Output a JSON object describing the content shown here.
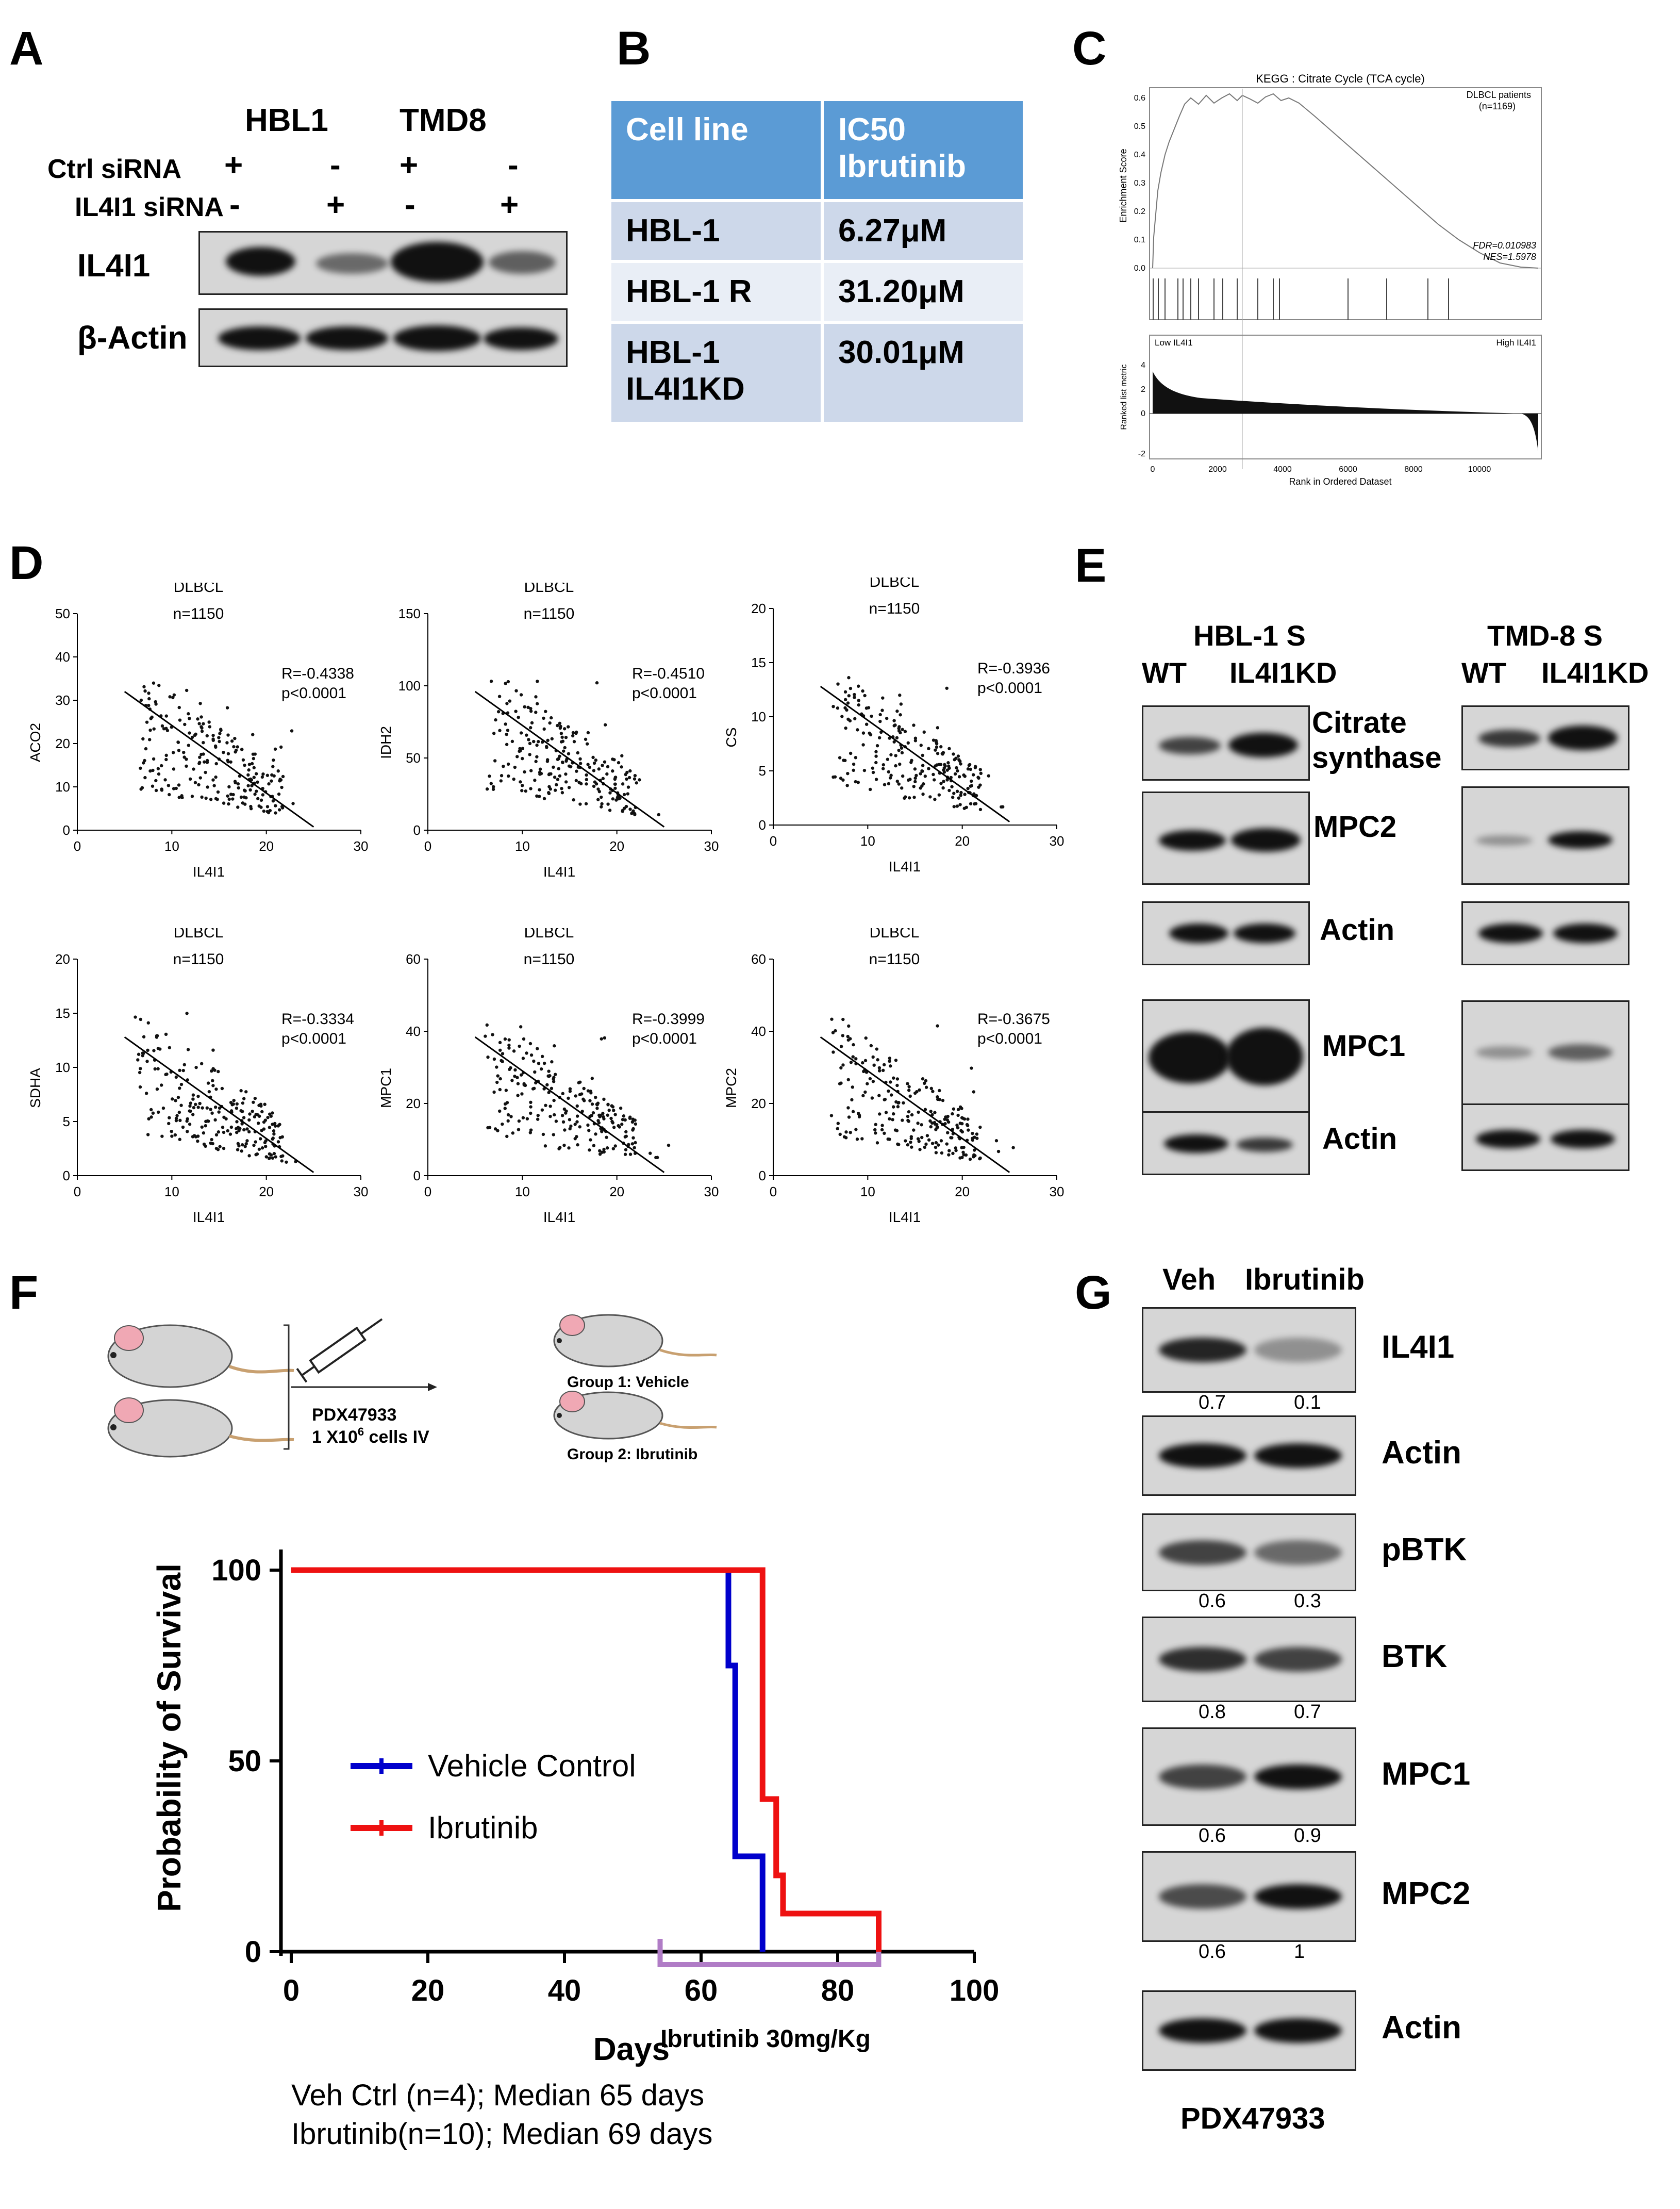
{
  "panels": {
    "A": "A",
    "B": "B",
    "C": "C",
    "D": "D",
    "E": "E",
    "F": "F",
    "G": "G"
  },
  "panelA": {
    "cells": [
      "HBL1",
      "TMD8"
    ],
    "rows": [
      {
        "label": "Ctrl siRNA",
        "signs": [
          "+",
          "-",
          "+",
          "-"
        ]
      },
      {
        "label": "IL4I1 siRNA",
        "signs": [
          "-",
          "+",
          "-",
          "+"
        ]
      }
    ],
    "blots": [
      "IL4I1",
      "β-Actin"
    ]
  },
  "panelB": {
    "header": [
      "Cell line",
      "IC50 Ibrutinib"
    ],
    "rows": [
      [
        "HBL-1",
        "6.27μM"
      ],
      [
        "HBL-1 R",
        "31.20μM"
      ],
      [
        "HBL-1 IL4I1KD",
        "30.01μM"
      ]
    ],
    "colors": {
      "header": "#5b9bd5",
      "odd": "#cdd8ea",
      "even": "#e9eef6"
    }
  },
  "panelC": {
    "title": "KEGG : Citrate Cycle (TCA cycle)",
    "group": "DLBCL patients",
    "n": "(n=1169)",
    "fdr": "FDR=0.010983",
    "nes": "NES=1.5978",
    "ylabel_top": "Enrichment Score",
    "ylabel_bottom": "Ranked list metric",
    "low": "Low IL4I1",
    "high": "High IL4I1",
    "xlabel": "Rank in Ordered Dataset",
    "es_ticks": [
      "0.0",
      "0.1",
      "0.2",
      "0.3",
      "0.4",
      "0.5",
      "0.6"
    ],
    "metric_ticks": [
      "-2",
      "0",
      "2",
      "4"
    ],
    "x_ticks": [
      "0",
      "2000",
      "4000",
      "6000",
      "8000",
      "10000"
    ]
  },
  "panelD": {
    "plots": [
      {
        "gene": "ACO2",
        "title": "DLBCL",
        "n": "n=1150",
        "r": "R=-0.4338",
        "p": "p<0.0001",
        "yticks": [
          "0",
          "10",
          "20",
          "30",
          "40",
          "50"
        ],
        "ymax": 50,
        "xlabel": "IL4I1"
      },
      {
        "gene": "IDH2",
        "title": "DLBCL",
        "n": "n=1150",
        "r": "R=-0.4510",
        "p": "p<0.0001",
        "yticks": [
          "0",
          "50",
          "100",
          "150"
        ],
        "ymax": 150,
        "xlabel": "IL4I1"
      },
      {
        "gene": "CS",
        "title": "DLBCL",
        "n": "n=1150",
        "r": "R=-0.3936",
        "p": "p<0.0001",
        "yticks": [
          "0",
          "5",
          "10",
          "15",
          "20"
        ],
        "ymax": 20,
        "xlabel": "IL4I1"
      },
      {
        "gene": "SDHA",
        "title": "DLBCL",
        "n": "n=1150",
        "r": "R=-0.3334",
        "p": "p<0.0001",
        "yticks": [
          "0",
          "5",
          "10",
          "15",
          "20"
        ],
        "ymax": 20,
        "xlabel": "IL4I1"
      },
      {
        "gene": "MPC1",
        "title": "DLBCL",
        "n": "n=1150",
        "r": "R=-0.3999",
        "p": "p<0.0001",
        "yticks": [
          "0",
          "20",
          "40",
          "60"
        ],
        "ymax": 60,
        "xlabel": "IL4I1"
      },
      {
        "gene": "MPC2",
        "title": "DLBCL",
        "n": "n=1150",
        "r": "R=-0.3675",
        "p": "p<0.0001",
        "yticks": [
          "0",
          "20",
          "40",
          "60"
        ],
        "ymax": 60,
        "xlabel": "IL4I1"
      }
    ],
    "xticks": [
      "0",
      "10",
      "20",
      "30"
    ]
  },
  "panelE": {
    "groups": [
      {
        "cell": "HBL-1 S",
        "cols": [
          "WT",
          "IL4I1KD"
        ]
      },
      {
        "cell": "TMD-8 S",
        "cols": [
          "WT",
          "IL4I1KD"
        ]
      }
    ],
    "blots": [
      "Citrate synthase",
      "MPC2",
      "Actin",
      "MPC1",
      "Actin"
    ]
  },
  "panelF": {
    "schematic": {
      "injection": "PDX47933",
      "cells": "1 X10",
      "cells_sup": "6",
      "cells_tail": " cells IV",
      "group1": "Group 1: Vehicle",
      "group2": "Group 2: Ibrutinib"
    },
    "chart_data": {
      "type": "line",
      "ylabel": "Probability of Survival",
      "xlabel": "Days",
      "xlim": [
        0,
        100
      ],
      "ylim": [
        0,
        100
      ],
      "xticks": [
        "0",
        "20",
        "40",
        "60",
        "80",
        "100"
      ],
      "yticks": [
        "0",
        "50",
        "100"
      ],
      "series": [
        {
          "name": "Vehicle Control",
          "color": "#0000cc",
          "steps": [
            [
              0,
              100
            ],
            [
              64,
              100
            ],
            [
              64,
              75
            ],
            [
              65,
              75
            ],
            [
              65,
              25
            ],
            [
              69,
              25
            ],
            [
              69,
              0
            ]
          ]
        },
        {
          "name": "Ibrutinib",
          "color": "#ee1111",
          "steps": [
            [
              0,
              100
            ],
            [
              69,
              100
            ],
            [
              69,
              40
            ],
            [
              71,
              40
            ],
            [
              71,
              20
            ],
            [
              72,
              20
            ],
            [
              72,
              10
            ],
            [
              86,
              10
            ],
            [
              86,
              0
            ]
          ]
        }
      ],
      "treatment": {
        "label": "Ibrutinib 30mg/Kg",
        "start": 54,
        "end": 86,
        "color": "#b07cc6"
      }
    },
    "footnote": [
      "Veh Ctrl (n=4); Median 65 days",
      "Ibrutinib(n=10); Median 69 days"
    ]
  },
  "panelG": {
    "cols": [
      "Veh",
      "Ibrutinib"
    ],
    "blots": [
      {
        "label": "IL4I1",
        "values": [
          "0.7",
          "0.1"
        ]
      },
      {
        "label": "Actin",
        "values": null
      },
      {
        "label": "pBTK",
        "values": [
          "0.6",
          "0.3"
        ]
      },
      {
        "label": "BTK",
        "values": [
          "0.8",
          "0.7"
        ]
      },
      {
        "label": "MPC1",
        "values": [
          "0.6",
          "0.9"
        ]
      },
      {
        "label": "MPC2",
        "values": [
          "0.6",
          "1"
        ]
      },
      {
        "label": "Actin",
        "values": null
      }
    ],
    "sample": "PDX47933"
  }
}
